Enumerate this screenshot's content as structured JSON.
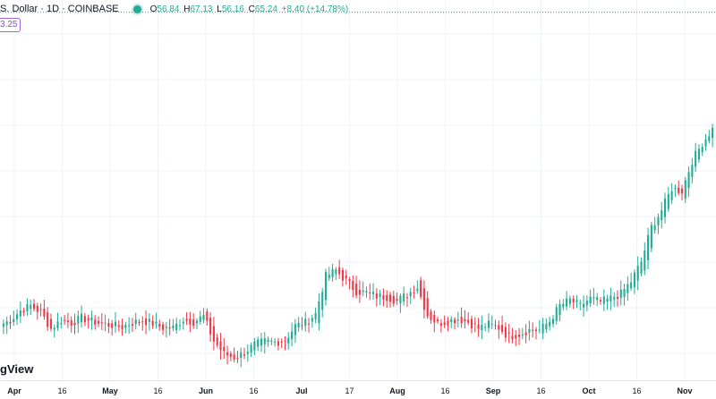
{
  "header": {
    "title": "S. Dollar · 1D · COINBASE",
    "ohlc": {
      "open_label": "O",
      "open": "56.84",
      "high_label": "H",
      "high": "67.13",
      "low_label": "L",
      "low": "56.16",
      "close_label": "C",
      "close": "65.24",
      "change": "+8.40 (+14.78%)"
    }
  },
  "price_badge": "3.25",
  "logo_text": "gView",
  "colors": {
    "up": "#22ab94",
    "down": "#f23645",
    "grid": "#f0f3fa",
    "dotted_line": "#22ab94"
  },
  "chart_data": {
    "type": "candlestick",
    "x_ticks": [
      {
        "label": "Apr",
        "major": true
      },
      {
        "label": "16",
        "major": false
      },
      {
        "label": "May",
        "major": true
      },
      {
        "label": "16",
        "major": false
      },
      {
        "label": "Jun",
        "major": true
      },
      {
        "label": "16",
        "major": false
      },
      {
        "label": "Jul",
        "major": true
      },
      {
        "label": "17",
        "major": false
      },
      {
        "label": "Aug",
        "major": true
      },
      {
        "label": "16",
        "major": false
      },
      {
        "label": "Sep",
        "major": true
      },
      {
        "label": "16",
        "major": false
      },
      {
        "label": "Oct",
        "major": true
      },
      {
        "label": "16",
        "major": false
      },
      {
        "label": "Nov",
        "major": true
      }
    ],
    "reference_line": 66.5,
    "ylim": [
      21.0,
      68.0
    ],
    "path": [
      [
        27.8,
        28.2
      ],
      [
        28.4,
        28.5
      ],
      [
        29.6,
        29.3
      ],
      [
        30.2,
        29.4
      ],
      [
        29.4,
        26.8
      ],
      [
        27.4,
        26.6
      ],
      [
        28.4,
        28.5
      ],
      [
        28.1,
        27.0
      ],
      [
        28.7,
        28.1
      ],
      [
        28.3,
        29.1
      ],
      [
        28.0,
        27.8
      ],
      [
        27.8,
        27.9
      ],
      [
        27.6,
        27.9
      ],
      [
        28.1,
        27.8
      ],
      [
        28.4,
        27.9
      ],
      [
        28.0,
        27.6
      ],
      [
        27.5,
        27.1
      ],
      [
        27.5,
        27.9
      ],
      [
        28.5,
        28.3
      ],
      [
        28.2,
        28.1
      ],
      [
        28.9,
        28.2
      ],
      [
        25.9,
        24.8
      ],
      [
        24.3,
        23.4
      ],
      [
        23.8,
        23.8
      ],
      [
        24.4,
        24.6
      ],
      [
        25.4,
        25.3
      ],
      [
        25.8,
        24.9
      ],
      [
        25.7,
        24.9
      ],
      [
        25.9,
        26.5
      ],
      [
        27.7,
        27.7
      ],
      [
        28.1,
        28.3
      ],
      [
        29.2,
        29.6
      ],
      [
        33.8,
        34.0
      ],
      [
        34.6,
        33.6
      ],
      [
        33.3,
        32.7
      ],
      [
        32.0,
        31.0
      ],
      [
        31.8,
        32.5
      ],
      [
        31.4,
        31.0
      ],
      [
        31.3,
        30.5
      ],
      [
        30.8,
        31.1
      ],
      [
        31.6,
        32.1
      ],
      [
        32.5,
        32.2
      ],
      [
        29.1,
        28.7
      ],
      [
        28.0,
        28.0
      ],
      [
        28.3,
        28.1
      ],
      [
        28.6,
        28.2
      ],
      [
        28.2,
        27.7
      ],
      [
        27.4,
        27.2
      ],
      [
        27.9,
        27.6
      ],
      [
        27.5,
        26.7
      ],
      [
        26.4,
        26.6
      ],
      [
        26.7,
        26.3
      ],
      [
        27.2,
        26.9
      ],
      [
        27.2,
        27.0
      ],
      [
        28.3,
        29.1
      ],
      [
        30.2,
        31.0
      ],
      [
        30.9,
        30.8
      ],
      [
        30.2,
        30.4
      ],
      [
        31.1,
        30.6
      ],
      [
        30.7,
        30.4
      ],
      [
        31.1,
        30.9
      ],
      [
        31.7,
        32.4
      ],
      [
        33.2,
        33.8
      ],
      [
        35.6,
        37.0
      ],
      [
        39.9,
        41.3
      ],
      [
        42.0,
        43.5
      ],
      [
        44.7,
        46.0
      ],
      [
        44.4,
        47.2
      ],
      [
        48.1,
        49.5
      ],
      [
        50.3,
        51.8
      ],
      [
        52.0,
        53.4
      ]
    ]
  }
}
